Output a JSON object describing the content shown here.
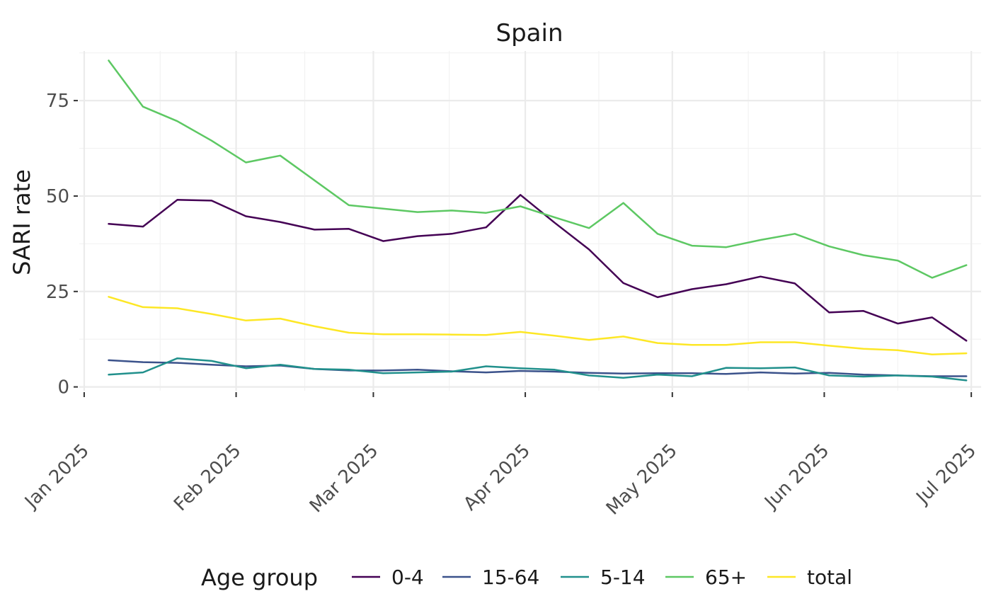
{
  "chart_data": {
    "type": "line",
    "title": "Spain",
    "xlabel": "",
    "ylabel": "SARI rate",
    "x_unit": "days since 2025-01-01",
    "xlim": [
      -1.0,
      183.0
    ],
    "ylim": [
      -1.0,
      88.0
    ],
    "x_ticks": [
      {
        "value": 0,
        "label": "Jan 2025"
      },
      {
        "value": 31,
        "label": "Feb 2025"
      },
      {
        "value": 59,
        "label": "Mar 2025"
      },
      {
        "value": 90,
        "label": "Apr 2025"
      },
      {
        "value": 120,
        "label": "May 2025"
      },
      {
        "value": 151,
        "label": "Jun 2025"
      },
      {
        "value": 181,
        "label": "Jul 2025"
      }
    ],
    "x_minor_ticks": [
      15.5,
      45,
      74.5,
      105,
      135.5,
      166
    ],
    "y_ticks": [
      {
        "value": 0,
        "label": "0"
      },
      {
        "value": 25,
        "label": "25"
      },
      {
        "value": 50,
        "label": "50"
      },
      {
        "value": 75,
        "label": "75"
      }
    ],
    "y_minor_ticks": [
      12.5,
      37.5,
      62.5,
      87.5
    ],
    "legend": {
      "title": "Age group",
      "position": "bottom"
    },
    "x": [
      5,
      12,
      19,
      26,
      33,
      40,
      47,
      54,
      61,
      68,
      75,
      82,
      89,
      96,
      103,
      110,
      117,
      124,
      131,
      138,
      145,
      152,
      159,
      166,
      173,
      180
    ],
    "series": [
      {
        "name": "0-4",
        "color": "#440154",
        "values": [
          42.7,
          42.0,
          49.0,
          48.8,
          44.7,
          43.2,
          41.2,
          41.4,
          38.2,
          39.5,
          40.1,
          41.8,
          50.3,
          43.0,
          36.0,
          27.2,
          23.5,
          25.6,
          26.9,
          28.9,
          27.1,
          19.5,
          19.9,
          16.6,
          18.2,
          12.1
        ]
      },
      {
        "name": "15-64",
        "color": "#3B528B",
        "values": [
          7.0,
          6.5,
          6.3,
          5.8,
          5.4,
          5.6,
          4.7,
          4.3,
          4.3,
          4.5,
          4.1,
          3.8,
          4.2,
          4.0,
          3.7,
          3.5,
          3.6,
          3.6,
          3.4,
          3.8,
          3.5,
          3.7,
          3.2,
          3.0,
          2.8,
          2.8
        ]
      },
      {
        "name": "5-14",
        "color": "#21908C",
        "values": [
          3.2,
          3.8,
          7.5,
          6.8,
          4.9,
          5.8,
          4.7,
          4.5,
          3.6,
          3.8,
          4.0,
          5.4,
          4.9,
          4.5,
          3.0,
          2.4,
          3.2,
          2.8,
          5.0,
          4.9,
          5.1,
          3.0,
          2.7,
          3.0,
          2.7,
          1.7
        ]
      },
      {
        "name": "65+",
        "color": "#5DC863",
        "values": [
          85.5,
          73.4,
          69.6,
          64.5,
          58.8,
          60.6,
          54.1,
          47.6,
          46.7,
          45.8,
          46.2,
          45.6,
          47.3,
          44.4,
          41.6,
          48.2,
          40.1,
          37.0,
          36.6,
          38.5,
          40.1,
          36.8,
          34.5,
          33.1,
          28.6,
          31.9
        ]
      },
      {
        "name": "total",
        "color": "#FDE725",
        "values": [
          23.6,
          20.9,
          20.6,
          19.1,
          17.4,
          17.9,
          15.9,
          14.2,
          13.8,
          13.8,
          13.7,
          13.6,
          14.4,
          13.4,
          12.3,
          13.2,
          11.5,
          11.0,
          11.0,
          11.7,
          11.7,
          10.8,
          10.0,
          9.6,
          8.5,
          8.8
        ]
      }
    ]
  }
}
